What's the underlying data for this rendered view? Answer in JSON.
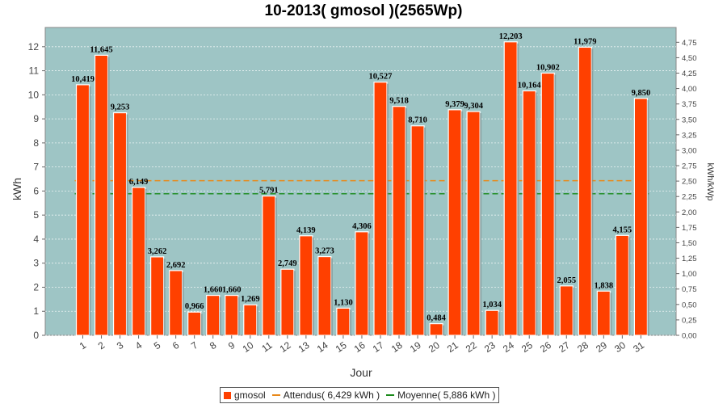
{
  "chart_data": {
    "type": "bar",
    "title": "10-2013( gmosol )(2565Wp)",
    "xlabel": "Jour",
    "ylabel": "kWh",
    "y2label": "kWh/kWp",
    "ylim": [
      0,
      12.8
    ],
    "y2lim": [
      0,
      4.99
    ],
    "yticks": [
      "0",
      "1",
      "2",
      "3",
      "4",
      "5",
      "6",
      "7",
      "8",
      "9",
      "10",
      "11",
      "12"
    ],
    "y2ticks": [
      "0,00",
      "0,25",
      "0,50",
      "0,75",
      "1,00",
      "1,25",
      "1,50",
      "1,75",
      "2,00",
      "2,25",
      "2,50",
      "2,75",
      "3,00",
      "3,25",
      "3,50",
      "3,75",
      "4,00",
      "4,25",
      "4,50",
      "4,75"
    ],
    "categories": [
      "1",
      "2",
      "3",
      "4",
      "5",
      "6",
      "7",
      "8",
      "9",
      "10",
      "11",
      "12",
      "13",
      "14",
      "15",
      "16",
      "17",
      "18",
      "19",
      "20",
      "21",
      "22",
      "23",
      "24",
      "25",
      "26",
      "27",
      "28",
      "29",
      "30",
      "31"
    ],
    "values": [
      10.419,
      11.645,
      9.253,
      6.149,
      3.262,
      2.692,
      0.966,
      1.66,
      1.66,
      1.269,
      5.791,
      2.749,
      4.139,
      3.273,
      1.13,
      4.306,
      10.527,
      9.518,
      8.71,
      0.484,
      9.379,
      9.304,
      1.034,
      12.203,
      10.164,
      10.902,
      2.055,
      11.979,
      1.838,
      4.155,
      9.85
    ],
    "value_labels": [
      "10,419",
      "11,645",
      "9,253",
      "6,149",
      "3,262",
      "2,692",
      "0,966",
      "1,660",
      "1,660",
      "1,269",
      "5,791",
      "2,749",
      "4,139",
      "3,273",
      "1,130",
      "4,306",
      "10,527",
      "9,518",
      "8,710",
      "0,484",
      "9,379",
      "9,304",
      "1,034",
      "12,203",
      "10,164",
      "10,902",
      "2,055",
      "11,979",
      "1,838",
      "4,155",
      "9,850"
    ],
    "reference_lines": [
      {
        "name": "Attendus( 6,429 kWh )",
        "value": 6.429,
        "color": "#e8891a",
        "style": "dashed"
      },
      {
        "name": "Moyenne( 5,886 kWh )",
        "value": 5.886,
        "color": "#1a8a1a",
        "style": "dashed"
      }
    ],
    "series": [
      {
        "name": "gmosol",
        "color": "#ff4000"
      }
    ],
    "legend_position": "bottom",
    "grid": true,
    "plot_background": "#9ec5c5"
  }
}
